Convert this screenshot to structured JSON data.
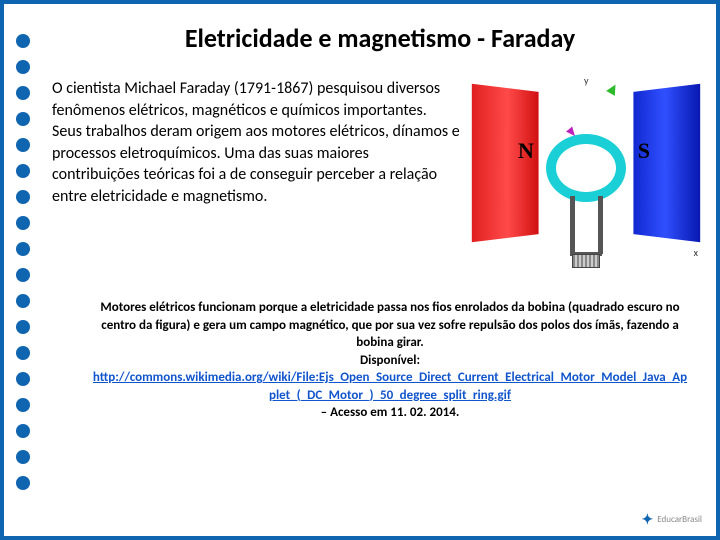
{
  "title": "Eletricidade e magnetismo - Faraday",
  "paragraph": "O cientista Michael Faraday (1791-1867) pesquisou diversos fenômenos elétricos, magnéticos e químicos importantes. Seus trabalhos deram origem aos motores elétricos, dínamos e processos eletroquímicos. Uma das suas maiores contribuições teóricas foi a de conseguir perceber a relação entre eletricidade e magnetismo.",
  "diagram": {
    "north_label": "N",
    "south_label": "S",
    "y_label": "y",
    "x_label": "x",
    "north_color": "#e02020",
    "south_color": "#1028d0",
    "coil_color": "#1ad0d6",
    "arrow_green": "#2dbb2d",
    "arrow_pink": "#bb20bb"
  },
  "caption": {
    "line1": "Motores elétricos funcionam porque a eletricidade passa nos fios enrolados da bobina (quadrado escuro no centro da figura) e gera um campo magnético, que por sua vez sofre repulsão dos polos dos ímãs, fazendo a bobina girar.",
    "available": "Disponível:",
    "link_text": "http://commons.wikimedia.org/wiki/File:Ejs_Open_Source_Direct_Current_Electrical_Motor_Model_Java_Applet_(_DC_Motor_)_50_degree_split_ring.gif",
    "access": "– Acesso em 11. 02. 2014."
  },
  "dot_count": 18,
  "dot_color": "#1065b0",
  "border_color": "#1065b0",
  "footer_brand": "EducarBrasil"
}
